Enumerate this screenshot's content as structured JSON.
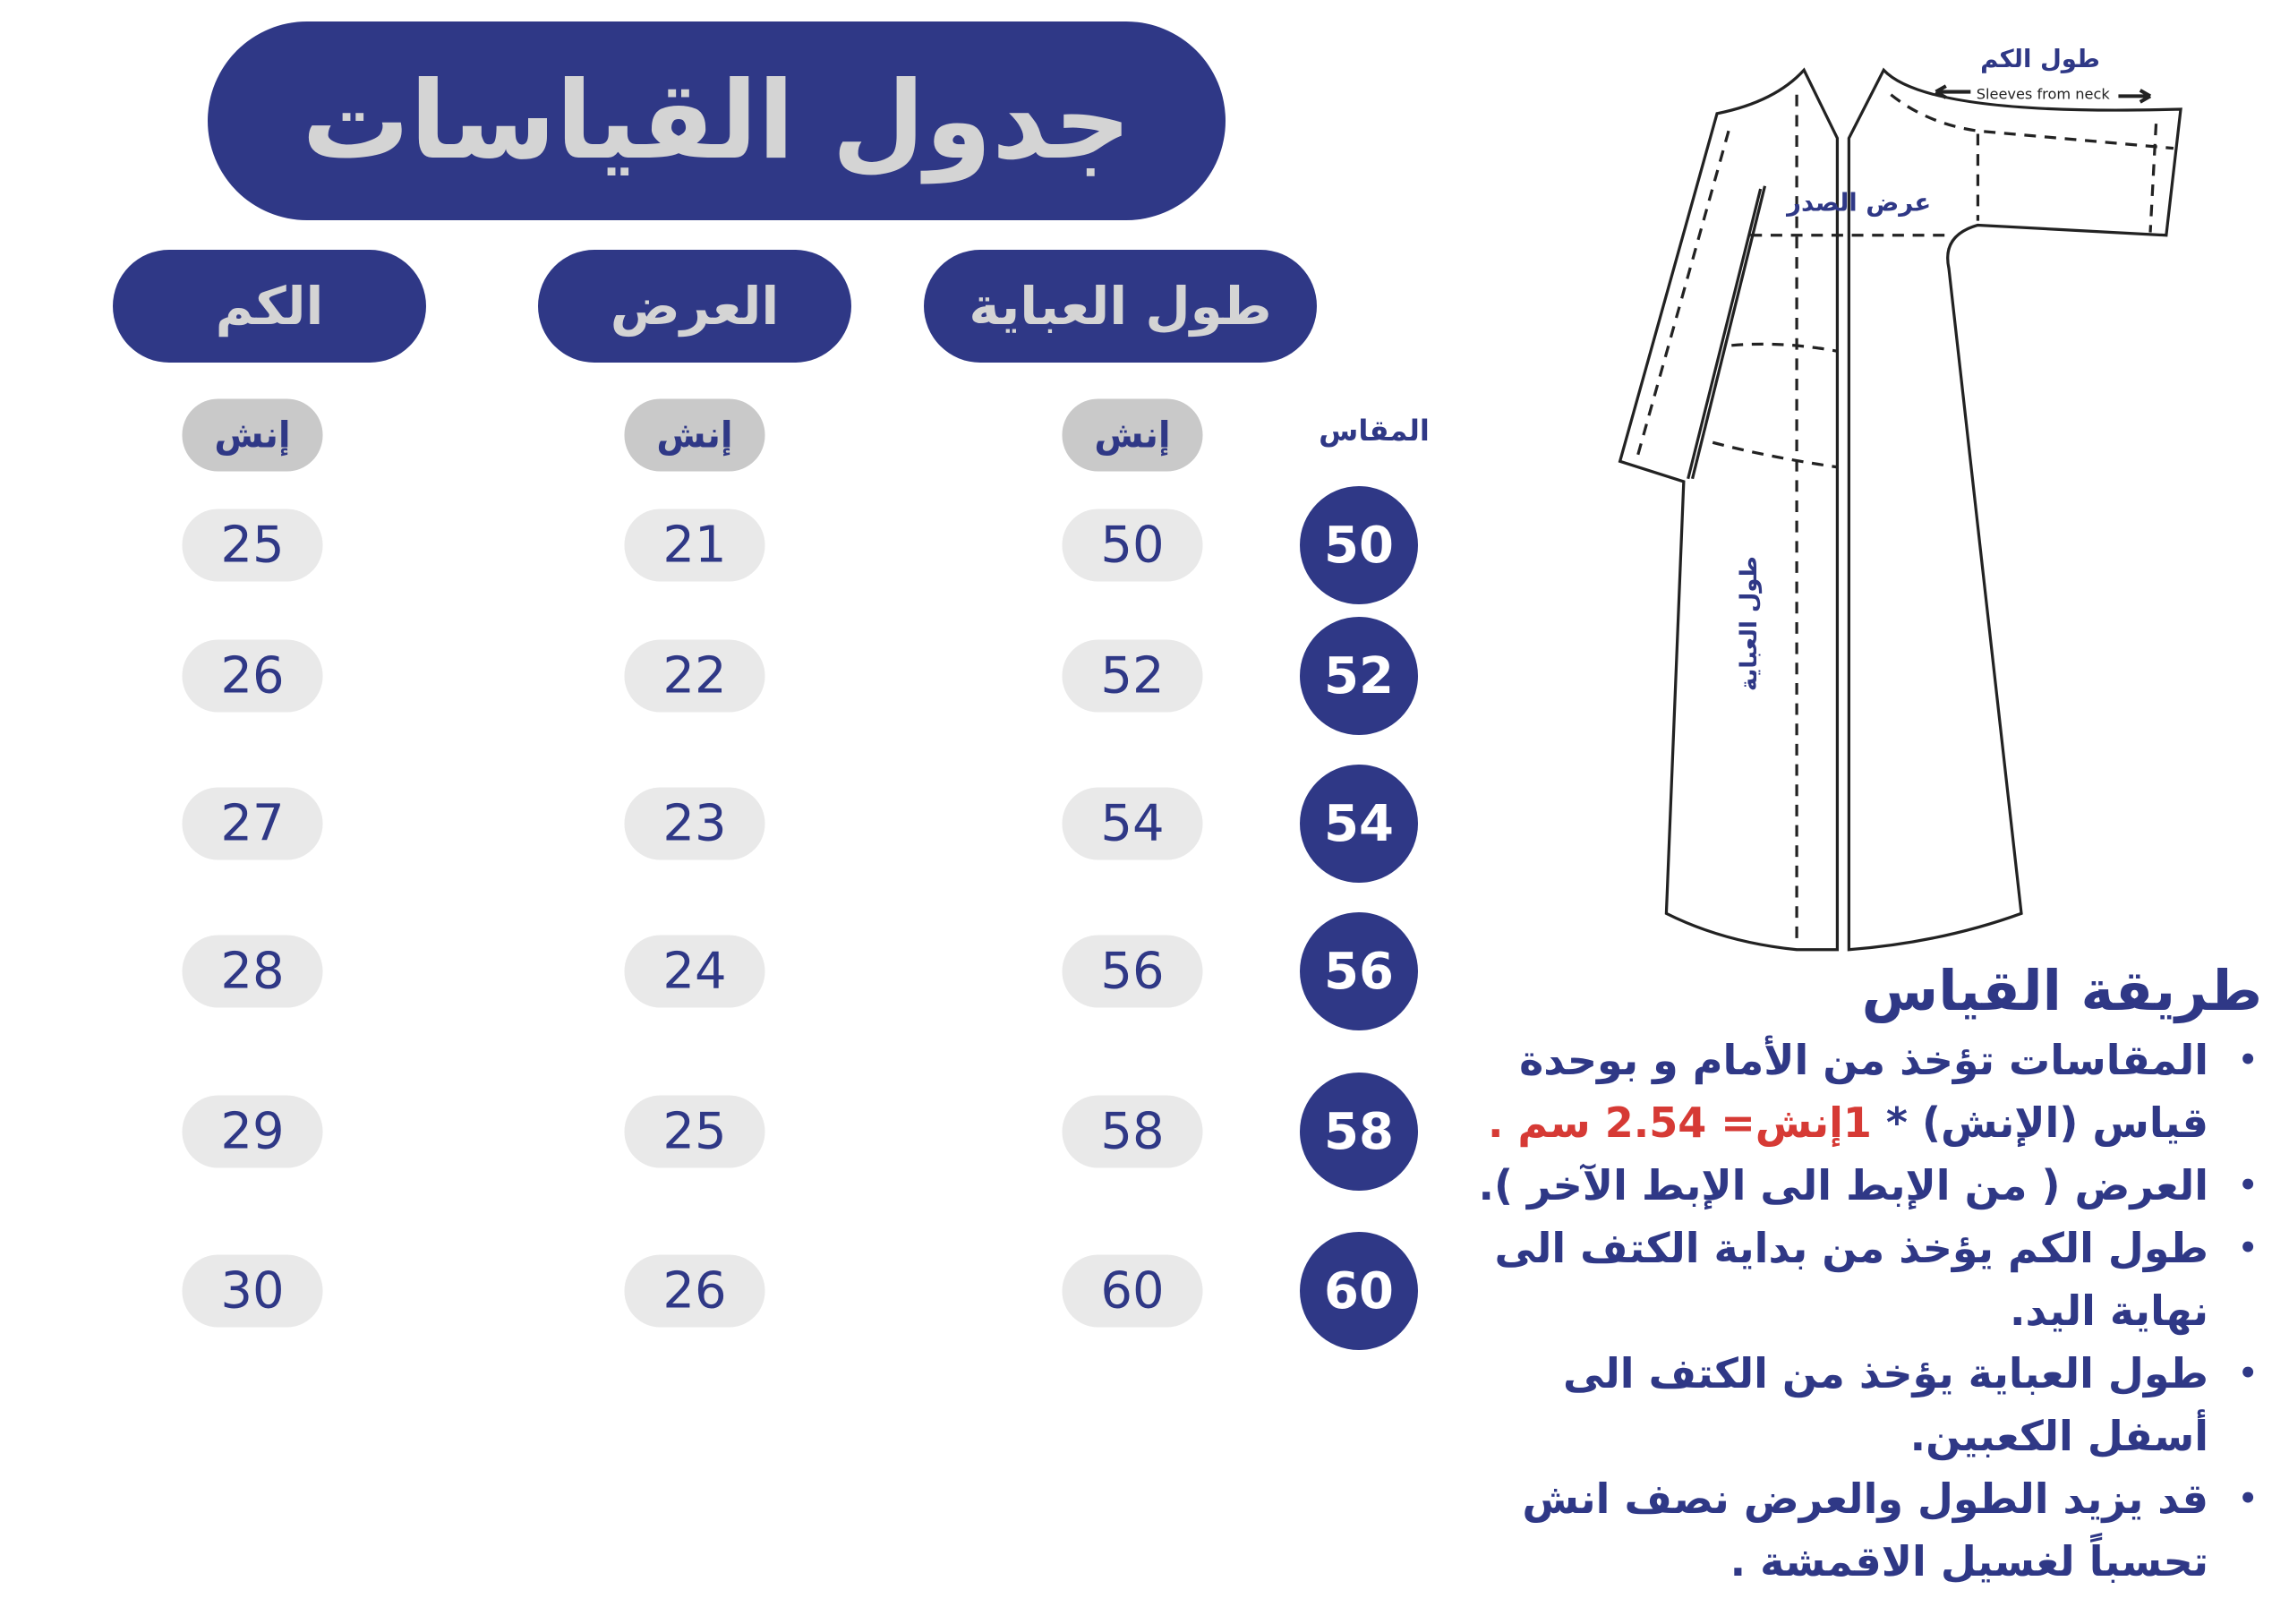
{
  "title": "جدول القياسات",
  "columns": [
    {
      "label": "طول العباية",
      "unit": "إنش",
      "values": [
        "50",
        "52",
        "54",
        "56",
        "58",
        "60"
      ]
    },
    {
      "label": "العرض",
      "unit": "إنش",
      "values": [
        "21",
        "22",
        "23",
        "24",
        "25",
        "26"
      ]
    },
    {
      "label": "الكم",
      "unit": "إنش",
      "values": [
        "25",
        "26",
        "27",
        "28",
        "29",
        "30"
      ]
    }
  ],
  "size_label": "المقاس",
  "sizes": [
    "50",
    "52",
    "54",
    "56",
    "58",
    "60"
  ],
  "diagram": {
    "sleeve_label": "طول الكم",
    "sleeve_label_en": "Sleeves from neck",
    "chest_label": "عرض الصدر",
    "length_label": "طول العباية"
  },
  "howto": {
    "title": "طريقة القياس",
    "item1_a": "المقاسات تؤخذ من الأمام و بوحدة قياس (الإنش) * ",
    "item1_red": "1إنش= 2.54 سم .",
    "item2": "العرض ( من الإبط الى الإبط الآخر ).",
    "item3": "طول الكم يؤخذ من بداية الكتف الى نهاية اليد.",
    "item4": "طول العباية يؤخذ من الكتف الى أسفل الكعبين.",
    "item5": "قد يزيد الطول والعرض نصف انش تحسباً لغسيل الاقمشة ."
  },
  "colors": {
    "navy": "#2f3886",
    "pill_gray": "#c9c9c9",
    "value_gray": "#e9e9e9",
    "accent_red": "#d63a35"
  }
}
